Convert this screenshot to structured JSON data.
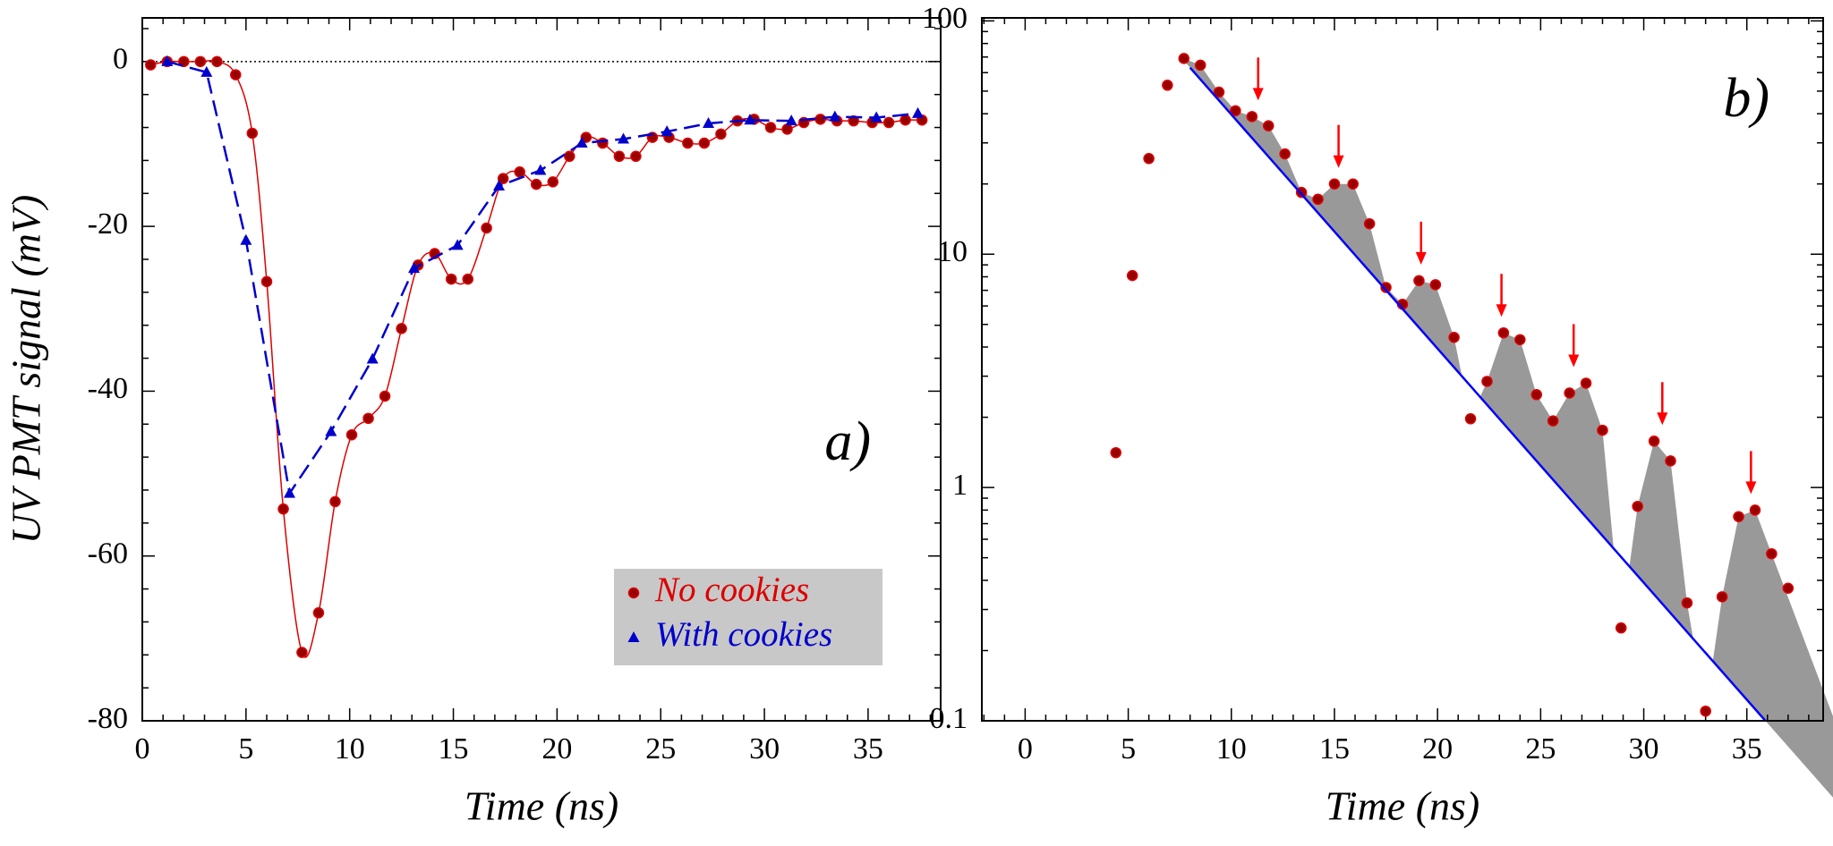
{
  "chart_data": [
    {
      "type": "line",
      "xlabel": "Time (ns)",
      "ylabel": "UV PMT signal (mV)",
      "annotation": "a)",
      "xlim": [
        0,
        38.5
      ],
      "ylim": [
        -80,
        5.3
      ],
      "xticks": [
        0,
        5,
        10,
        15,
        20,
        25,
        30,
        35
      ],
      "yticks": [
        -80,
        -60,
        -40,
        -20,
        0
      ],
      "x_minor_step": 1,
      "y_minor_step": 4,
      "hline": 0,
      "legend": "lower right",
      "series": [
        {
          "name": "No cookies",
          "color": "#dd0000",
          "marker": "circle",
          "line": "smooth",
          "x": [
            0.4,
            1.2,
            2.0,
            2.8,
            3.6,
            4.5,
            5.3,
            6.0,
            6.8,
            7.7,
            8.5,
            9.3,
            10.1,
            10.9,
            11.7,
            12.5,
            13.3,
            14.1,
            14.9,
            15.7,
            16.6,
            17.4,
            18.2,
            19.0,
            19.8,
            20.6,
            21.4,
            22.2,
            23.0,
            23.8,
            24.6,
            25.4,
            26.3,
            27.1,
            27.9,
            28.7,
            29.5,
            30.3,
            31.1,
            31.9,
            32.7,
            33.5,
            34.3,
            35.2,
            36.0,
            36.8,
            37.6
          ],
          "values": [
            -0.4,
            0,
            0,
            0,
            0,
            -1.6,
            -8.7,
            -26.7,
            -54.3,
            -71.7,
            -66.9,
            -53.4,
            -45.3,
            -43.3,
            -40.6,
            -32.4,
            -24.7,
            -23.3,
            -26.4,
            -26.4,
            -20.2,
            -14.2,
            -13.4,
            -14.9,
            -14.6,
            -11.5,
            -9.2,
            -9.9,
            -11.5,
            -11.5,
            -9.2,
            -9.2,
            -9.9,
            -9.9,
            -8.8,
            -7.2,
            -7.0,
            -8.0,
            -8.2,
            -7.4,
            -7.0,
            -7.2,
            -7.2,
            -7.4,
            -7.4,
            -7.1,
            -7.1
          ]
        },
        {
          "name": "With cookies",
          "color": "#0000cc",
          "marker": "triangle",
          "line": "dashed",
          "x": [
            1.2,
            3.1,
            5.0,
            7.1,
            9.1,
            11.1,
            13.1,
            15.2,
            17.2,
            19.2,
            21.2,
            23.2,
            25.3,
            27.3,
            29.3,
            31.3,
            33.4,
            35.4,
            37.4
          ],
          "values": [
            0,
            -1.3,
            -21.7,
            -52.4,
            -44.9,
            -36.1,
            -25.1,
            -22.3,
            -15.1,
            -13.2,
            -9.9,
            -9.4,
            -8.5,
            -7.5,
            -7.1,
            -7.2,
            -6.7,
            -6.8,
            -6.3
          ]
        }
      ]
    },
    {
      "type": "scatter",
      "xlabel": "Time (ns)",
      "annotation": "b)",
      "log_y": true,
      "xlim": [
        -2.1,
        38.7
      ],
      "ylim": [
        0.1,
        103
      ],
      "xticks": [
        0,
        5,
        10,
        15,
        20,
        25,
        30,
        35
      ],
      "yticks": [
        0.1,
        1,
        10,
        100
      ],
      "x_minor_step": 1,
      "series": [
        {
          "color": "#dd0000",
          "marker": "circle",
          "x": [
            4.4,
            5.2,
            6.0,
            6.9,
            7.7,
            8.5,
            9.4,
            10.2,
            11.0,
            11.8,
            12.6,
            13.4,
            14.2,
            15.0,
            15.9,
            16.7,
            17.5,
            18.3,
            19.1,
            19.9,
            20.8,
            21.6,
            22.4,
            23.2,
            24.0,
            24.8,
            25.6,
            26.4,
            27.2,
            28.0,
            28.9,
            29.7,
            30.5,
            31.3,
            32.1,
            33.0,
            33.8,
            34.6,
            35.4,
            36.2,
            37.0
          ],
          "values": [
            1.41,
            8.1,
            25.7,
            53,
            69,
            64.6,
            49.5,
            41.2,
            38.9,
            35.5,
            26.9,
            18.4,
            17.2,
            20,
            20,
            13.5,
            7.2,
            6.1,
            7.7,
            7.4,
            4.4,
            1.97,
            2.85,
            4.6,
            4.3,
            2.5,
            1.93,
            2.54,
            2.8,
            1.76,
            0.25,
            0.83,
            1.58,
            1.3,
            0.32,
            0.11,
            0.34,
            0.75,
            0.8,
            0.52,
            0.37
          ]
        },
        {
          "color": "#0000ff",
          "marker": "none",
          "line": "solid",
          "x": [
            8.0,
            35.9
          ],
          "values": [
            63,
            0.1
          ]
        }
      ],
      "shade": {
        "color": "#999999"
      },
      "arrows": {
        "color": "#ff0000",
        "x": [
          11.3,
          15.2,
          19.2,
          23.1,
          26.6,
          30.9,
          35.2
        ]
      }
    }
  ]
}
